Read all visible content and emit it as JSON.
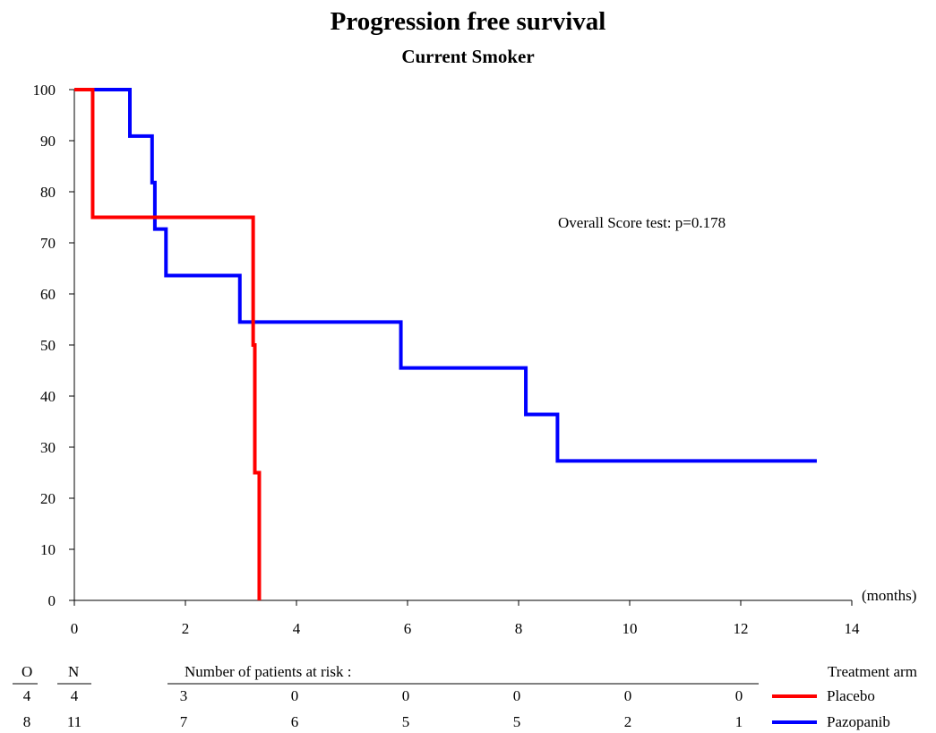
{
  "chart_data": {
    "type": "line",
    "title": "Progression free survival",
    "subtitle": "Current Smoker",
    "xlabel": "(months)",
    "xlim": [
      0,
      14
    ],
    "ylim": [
      0,
      100
    ],
    "xticks": [
      0,
      2,
      4,
      6,
      8,
      10,
      12,
      14
    ],
    "yticks": [
      0,
      10,
      20,
      30,
      40,
      50,
      60,
      70,
      80,
      90,
      100
    ],
    "annotation": "Overall Score test: p=0.178",
    "series": [
      {
        "name": "Placebo",
        "color": "#ff0000",
        "step_points": [
          [
            0,
            100
          ],
          [
            0.33,
            75
          ],
          [
            3.22,
            50
          ],
          [
            3.25,
            25
          ],
          [
            3.33,
            0
          ]
        ]
      },
      {
        "name": "Pazopanib",
        "color": "#0000ff",
        "step_points": [
          [
            0,
            100
          ],
          [
            1.0,
            90.9
          ],
          [
            1.4,
            81.8
          ],
          [
            1.45,
            72.7
          ],
          [
            1.65,
            63.6
          ],
          [
            2.98,
            54.5
          ],
          [
            5.88,
            45.5
          ],
          [
            8.13,
            36.4
          ],
          [
            8.7,
            27.3
          ],
          [
            13.37,
            27.3
          ]
        ]
      }
    ]
  },
  "risk_table": {
    "col_o": "O",
    "col_n": "N",
    "caption": "Number of patients at risk :",
    "legend_title": "Treatment arm",
    "rows": [
      {
        "o": "4",
        "n": "4",
        "counts": [
          "3",
          "0",
          "0",
          "0",
          "0",
          "0"
        ],
        "label": "Placebo",
        "color": "#ff0000"
      },
      {
        "o": "8",
        "n": "11",
        "counts": [
          "7",
          "6",
          "5",
          "5",
          "2",
          "1"
        ],
        "label": "Pazopanib",
        "color": "#0000ff"
      }
    ]
  }
}
